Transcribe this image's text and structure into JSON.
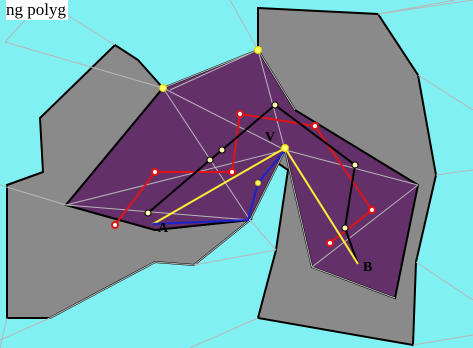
{
  "caption": "ng polyg",
  "labels": {
    "v": "V",
    "a": "A",
    "b": "B"
  },
  "colors": {
    "background": "#80f0f3",
    "obstacle": "#8a8a8a",
    "polygon": "#64306a",
    "triangulation": "#b7b7b7",
    "path_red": "#e01414",
    "path_black": "#000000",
    "path_yellow": "#ffee33",
    "path_blue": "#1a22cc"
  }
}
